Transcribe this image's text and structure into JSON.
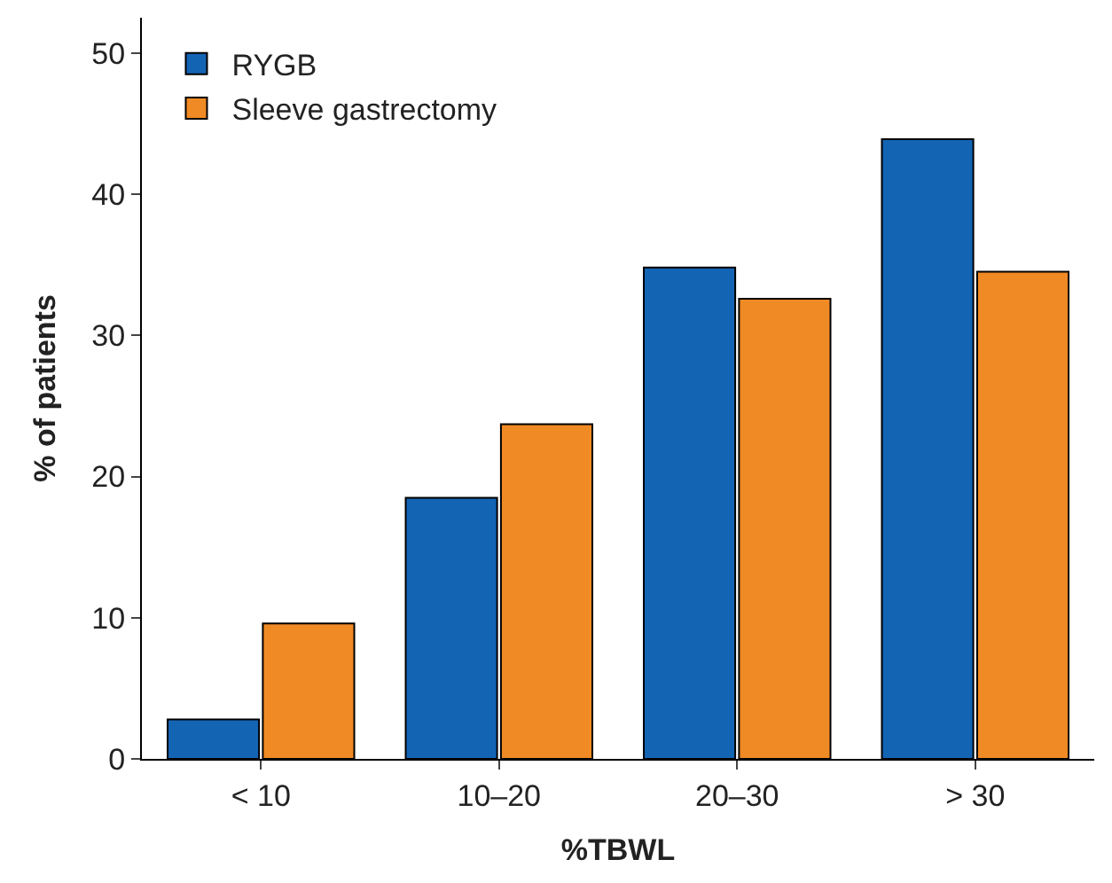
{
  "chart_data": {
    "type": "bar",
    "xlabel": "%TBWL",
    "ylabel": "% of patients",
    "categories": [
      "< 10",
      "10–20",
      "20–30",
      "> 30"
    ],
    "series": [
      {
        "name": "RYGB",
        "color": "#1464b4",
        "values": [
          2.8,
          18.5,
          34.8,
          43.9
        ]
      },
      {
        "name": "Sleeve gastrectomy",
        "color": "#f08a24",
        "values": [
          9.6,
          23.7,
          32.6,
          34.5
        ]
      }
    ],
    "ylim": [
      0,
      52.5
    ],
    "yticks": [
      0,
      10,
      20,
      30,
      40,
      50
    ],
    "legend": "top left"
  }
}
